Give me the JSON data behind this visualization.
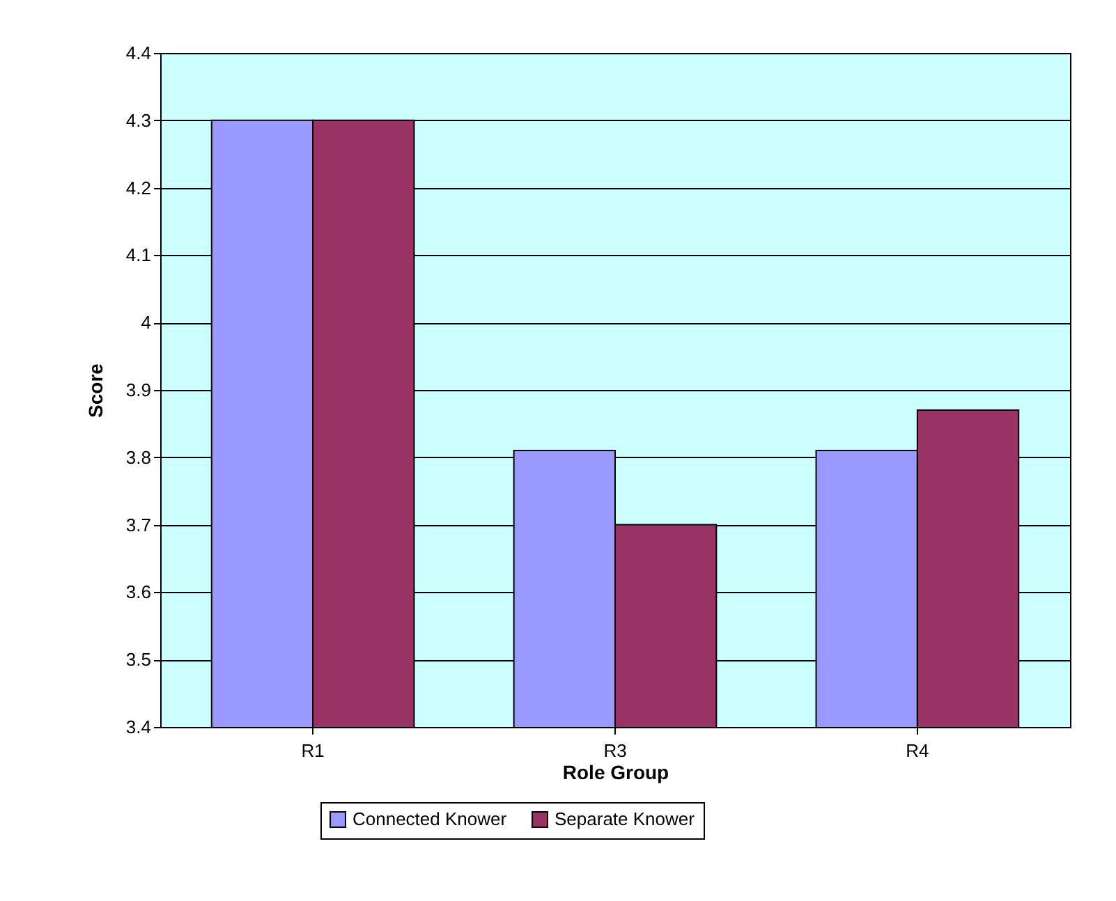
{
  "chart_data": {
    "type": "bar",
    "xlabel": "Role Group",
    "ylabel": "Score",
    "categories": [
      "R1",
      "R3",
      "R4"
    ],
    "series": [
      {
        "name": "Connected Knower",
        "color": "#9999ff",
        "values": [
          4.3,
          3.81,
          3.81
        ]
      },
      {
        "name": "Separate Knower",
        "color": "#993366",
        "values": [
          4.3,
          3.7,
          3.87
        ]
      }
    ],
    "ylim": [
      3.4,
      4.4
    ],
    "yticks": [
      3.4,
      3.5,
      3.6,
      3.7,
      3.8,
      3.9,
      4,
      4.1,
      4.2,
      4.3,
      4.4
    ],
    "grid": "y",
    "legend": "bottom"
  }
}
